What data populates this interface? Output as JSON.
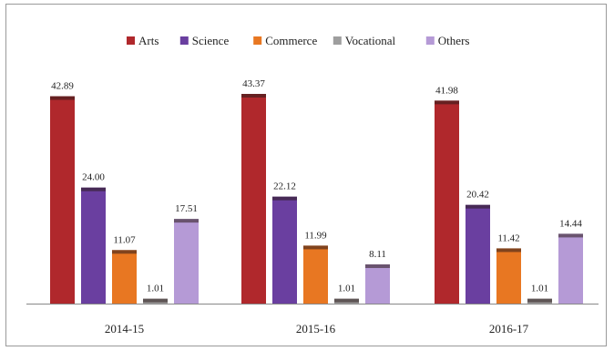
{
  "chart_data": {
    "type": "bar",
    "title": "",
    "xlabel": "",
    "ylabel": "",
    "legend_position": "top",
    "grid": false,
    "ylim": [
      0,
      50
    ],
    "categories": [
      "2014-15",
      "2015-16",
      "2016-17"
    ],
    "series": [
      {
        "name": "Arts",
        "color": "#b0282c",
        "values": [
          42.89,
          43.37,
          41.98
        ],
        "labels": [
          "42.89",
          "43.37",
          "41.98"
        ]
      },
      {
        "name": "Science",
        "color": "#6a3fa0",
        "values": [
          24.0,
          22.12,
          20.42
        ],
        "labels": [
          "24.00",
          "22.12",
          "20.42"
        ]
      },
      {
        "name": "Commerce",
        "color": "#e87722",
        "values": [
          11.07,
          11.99,
          11.42
        ],
        "labels": [
          "11.07",
          "11.99",
          "11.42"
        ]
      },
      {
        "name": "Vocational",
        "color": "#9e9e9e",
        "values": [
          1.01,
          1.01,
          1.01
        ],
        "labels": [
          "1.01",
          "1.01",
          "1.01"
        ]
      },
      {
        "name": "Others",
        "color": "#b59ad6",
        "values": [
          17.51,
          8.11,
          14.44
        ],
        "labels": [
          "17.51",
          "8.11",
          "14.44"
        ]
      }
    ]
  }
}
